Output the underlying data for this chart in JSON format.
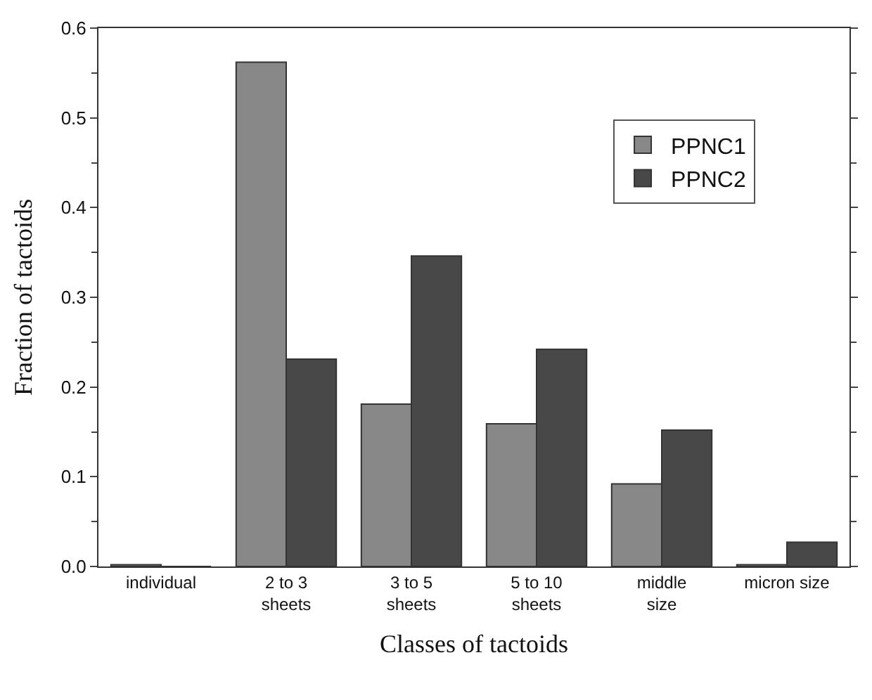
{
  "chart_data": {
    "type": "bar",
    "xlabel": "Classes of tactoids",
    "ylabel": "Fraction of tactoids",
    "categories": [
      "individual",
      "2 to 3\nsheets",
      "3 to 5\nsheets",
      "5 to 10\nsheets",
      "middle\nsize",
      "micron size"
    ],
    "series": [
      {
        "name": "PPNC1",
        "color": "#888888",
        "values": [
          0.002,
          0.562,
          0.181,
          0.159,
          0.092,
          0.002
        ]
      },
      {
        "name": "PPNC2",
        "color": "#484848",
        "values": [
          0,
          0.231,
          0.346,
          0.242,
          0.152,
          0.027
        ]
      }
    ],
    "ylim": [
      0,
      0.6
    ],
    "yticks": [
      {
        "value": 0,
        "label": "0.0"
      },
      0.1,
      0.2,
      0.3,
      0.4,
      0.5,
      0.6
    ],
    "legend": "top right"
  }
}
